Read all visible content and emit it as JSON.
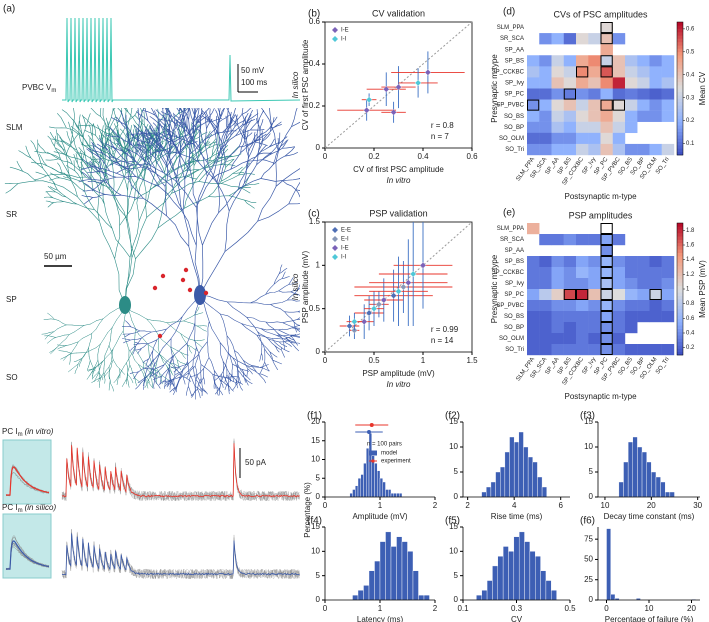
{
  "panel_a": {
    "label": "(a)",
    "vm_label": "PVBC V",
    "vm_sub": "m",
    "scale_mv": "50 mV",
    "scale_ms": "100 ms",
    "layers": [
      "SLM",
      "SR",
      "SP",
      "SO"
    ],
    "scale_um": "50 µm",
    "pc_label": "PC I",
    "pc_sub": "m",
    "vitro_note": "(in vitro)",
    "silico_note": "(in silico)",
    "scale_pa": "50 pA"
  },
  "chart_data": [
    {
      "type": "scatter",
      "panel_label": "(b)",
      "title": "CV validation",
      "xlabel": "CV of first PSC amplitude",
      "xlabel_note": "In vitro",
      "ylabel": "CV of first PSC amplitude",
      "ylabel_note": "In silico",
      "annotations": [
        "r = 0.8",
        "n = 7"
      ],
      "xlim": [
        0,
        0.6
      ],
      "ylim": [
        0,
        0.6
      ],
      "xticks": [
        0,
        0.2,
        0.4,
        0.6
      ],
      "yticks": [
        0,
        0.2,
        0.4,
        0.6
      ],
      "x_color": "#e8352b",
      "y_color": "#3a6fc4",
      "identity_line": true,
      "series": [
        {
          "name": "I-E",
          "color": "#7b62b8",
          "x": [
            0.17,
            0.25,
            0.28,
            0.3,
            0.42
          ],
          "values": [
            0.18,
            0.28,
            0.17,
            0.29,
            0.36
          ],
          "xerr": [
            0.12,
            0.08,
            0.05,
            0.07,
            0.15
          ],
          "yerr": [
            0.05,
            0.08,
            0.05,
            0.1,
            0.1
          ]
        },
        {
          "name": "I-I",
          "color": "#4fc8d8",
          "x": [
            0.18,
            0.38
          ],
          "values": [
            0.23,
            0.31
          ],
          "xerr": [
            0.03,
            0.08
          ],
          "yerr": [
            0.03,
            0.07
          ]
        }
      ]
    },
    {
      "type": "scatter",
      "panel_label": "(c)",
      "title": "PSP validation",
      "xlabel": "PSP amplitude (mV)",
      "xlabel_note": "In vitro",
      "ylabel": "PSP amplitude (mV)",
      "ylabel_note": "In silico",
      "annotations": [
        "r = 0.99",
        "n = 14"
      ],
      "xlim": [
        0,
        1.5
      ],
      "ylim": [
        0,
        1.5
      ],
      "xticks": [
        0,
        0.5,
        1,
        1.5
      ],
      "yticks": [
        0,
        0.5,
        1,
        1.5
      ],
      "x_color": "#e8352b",
      "y_color": "#3a6fc4",
      "identity_line": true,
      "series": [
        {
          "name": "E-E",
          "color": "#4f6fb5",
          "x": [
            0.25,
            0.45,
            0.7
          ],
          "values": [
            0.3,
            0.45,
            0.65
          ],
          "xerr": [
            0.1,
            0.15,
            0.4
          ],
          "yerr": [
            0.12,
            0.2,
            0.3
          ]
        },
        {
          "name": "E-I",
          "color": "#8898b8",
          "x": [
            0.3,
            0.55,
            0.8
          ],
          "values": [
            0.25,
            0.55,
            0.75
          ],
          "xerr": [
            0.05,
            0.1,
            0.5
          ],
          "yerr": [
            0.1,
            0.15,
            0.3
          ]
        },
        {
          "name": "I-E",
          "color": "#7b62b8",
          "x": [
            0.4,
            0.6,
            0.85,
            1.0
          ],
          "values": [
            0.35,
            0.6,
            0.8,
            1.0
          ],
          "xerr": [
            0.1,
            0.2,
            0.4,
            0.3
          ],
          "yerr": [
            0.2,
            0.25,
            0.5,
            0.5
          ]
        },
        {
          "name": "I-I",
          "color": "#4fc8d8",
          "x": [
            0.3,
            0.5,
            0.75,
            0.9
          ],
          "values": [
            0.35,
            0.5,
            0.7,
            0.9
          ],
          "xerr": [
            0.08,
            0.1,
            0.3,
            0.35
          ],
          "yerr": [
            0.1,
            0.2,
            0.4,
            0.6
          ]
        }
      ]
    },
    {
      "type": "heatmap",
      "panel_label": "(d)",
      "title": "CVs of PSC amplitudes",
      "xlabel": "Postsynaptic m-type",
      "ylabel": "Presynaptic m-type",
      "colorbar_label": "Mean CV",
      "colormap": "coolwarm",
      "clim": [
        0.05,
        0.63
      ],
      "cticks": [
        0.1,
        0.2,
        0.3,
        0.4,
        0.5,
        0.6
      ],
      "rows": [
        "SLM_PPA",
        "SR_SCA",
        "SP_AA",
        "SP_BS",
        "SP_CCKBC",
        "SP_Ivy",
        "SP_PC",
        "SP_PVBC",
        "SO_BS",
        "SO_BP",
        "SO_OLM",
        "SO_Tri"
      ],
      "columns": [
        "SLM_PPA",
        "SR_SCA",
        "SP_AA",
        "SP_BS",
        "SP_CCKBC",
        "SP_Ivy",
        "SP_PC",
        "SP_PVBC",
        "SO_BS",
        "SO_BP",
        "SO_OLM",
        "SO_Tri"
      ],
      "values": [
        [
          null,
          null,
          null,
          null,
          null,
          null,
          0.35,
          null,
          null,
          null,
          null,
          null
        ],
        [
          null,
          0.15,
          0.2,
          0.1,
          0.35,
          0.3,
          0.4,
          0.15,
          null,
          null,
          null,
          null
        ],
        [
          null,
          null,
          null,
          null,
          null,
          null,
          0.45,
          null,
          null,
          null,
          null,
          null
        ],
        [
          0.2,
          0.15,
          0.3,
          0.2,
          0.45,
          0.5,
          0.3,
          0.4,
          0.25,
          0.2,
          0.15,
          0.2
        ],
        [
          0.25,
          0.2,
          0.35,
          0.3,
          0.5,
          0.45,
          0.55,
          0.4,
          0.3,
          0.25,
          0.2,
          0.2
        ],
        [
          0.2,
          0.2,
          0.4,
          0.35,
          0.45,
          0.4,
          0.5,
          0.6,
          0.35,
          0.3,
          0.2,
          0.25
        ],
        [
          0.1,
          0.1,
          0.15,
          0.12,
          0.15,
          0.12,
          0.2,
          0.1,
          0.12,
          0.1,
          0.08,
          0.1
        ],
        [
          0.15,
          0.2,
          0.35,
          0.4,
          0.3,
          0.4,
          0.45,
          0.35,
          0.3,
          0.2,
          0.15,
          0.2
        ],
        [
          0.2,
          0.15,
          0.3,
          0.25,
          0.35,
          0.4,
          0.45,
          0.35,
          0.2,
          0.15,
          0.15,
          0.2
        ],
        [
          0.15,
          0.15,
          0.25,
          0.2,
          0.3,
          0.3,
          0.4,
          0.3,
          0.2,
          null,
          null,
          null
        ],
        [
          0.1,
          0.1,
          0.15,
          0.15,
          0.2,
          0.2,
          0.35,
          0.2,
          null,
          null,
          null,
          null
        ],
        [
          0.15,
          0.15,
          0.2,
          0.2,
          0.3,
          0.25,
          0.4,
          0.25,
          0.15,
          0.15,
          0.2,
          0.3
        ]
      ],
      "highlight": [
        [
          0,
          6
        ],
        [
          1,
          6
        ],
        [
          3,
          6
        ],
        [
          4,
          4
        ],
        [
          4,
          6
        ],
        [
          6,
          3
        ],
        [
          7,
          0
        ],
        [
          7,
          6
        ],
        [
          7,
          7
        ]
      ]
    },
    {
      "type": "heatmap",
      "panel_label": "(e)",
      "title": "PSP amplitudes",
      "xlabel": "Postsynaptic m-type",
      "ylabel": "Presynaptic m-type",
      "colorbar_label": "Mean PSP (mV)",
      "colormap": "coolwarm",
      "clim": [
        0.1,
        1.9
      ],
      "cticks": [
        0.2,
        0.4,
        0.6,
        0.8,
        1,
        1.2,
        1.4,
        1.6,
        1.8
      ],
      "rows": [
        "SLM_PPA",
        "SR_SCA",
        "SP_AA",
        "SP_BS",
        "SP_CCKBC",
        "SP_Ivy",
        "SP_PC",
        "SP_PVBC",
        "SO_BS",
        "SO_BP",
        "SO_OLM",
        "SO_Tri"
      ],
      "columns": [
        "SLM_PPA",
        "SR_SCA",
        "SP_AA",
        "SP_BS",
        "SP_CCKBC",
        "SP_Ivy",
        "SP_PC",
        "SP_PVBC",
        "SO_BS",
        "SO_BP",
        "SO_OLM",
        "SO_Tri"
      ],
      "values": [
        [
          1.3,
          null,
          null,
          null,
          null,
          null,
          null,
          null,
          null,
          null,
          null,
          null
        ],
        [
          null,
          0.3,
          0.3,
          0.4,
          0.3,
          0.3,
          0.5,
          0.3,
          null,
          null,
          null,
          null
        ],
        [
          null,
          null,
          null,
          null,
          null,
          null,
          0.4,
          null,
          null,
          null,
          null,
          null
        ],
        [
          0.3,
          0.2,
          0.4,
          0.3,
          0.5,
          0.4,
          0.6,
          0.4,
          0.3,
          0.3,
          0.2,
          0.3
        ],
        [
          0.3,
          0.3,
          0.5,
          0.4,
          0.6,
          0.5,
          0.6,
          0.5,
          0.3,
          0.3,
          0.3,
          0.3
        ],
        [
          0.3,
          0.3,
          0.5,
          0.4,
          0.4,
          0.5,
          0.7,
          0.5,
          0.4,
          0.3,
          0.3,
          0.4
        ],
        [
          0.5,
          0.8,
          1.1,
          1.7,
          1.8,
          1.2,
          0.9,
          1.0,
          0.6,
          0.5,
          0.9,
          0.5
        ],
        [
          0.3,
          0.3,
          0.4,
          0.4,
          0.5,
          0.4,
          0.6,
          0.4,
          0.3,
          0.3,
          0.2,
          0.3
        ],
        [
          0.2,
          0.2,
          0.3,
          0.3,
          0.3,
          0.3,
          0.5,
          0.3,
          0.2,
          0.2,
          0.2,
          0.2
        ],
        [
          0.2,
          0.2,
          0.3,
          0.2,
          0.3,
          0.3,
          0.4,
          0.3,
          0.2,
          null,
          null,
          null
        ],
        [
          0.2,
          0.2,
          0.2,
          0.2,
          0.3,
          0.2,
          0.4,
          0.2,
          null,
          null,
          null,
          null
        ],
        [
          0.2,
          0.2,
          0.3,
          0.3,
          0.3,
          0.3,
          0.4,
          0.3,
          0.2,
          0.2,
          0.2,
          0.2
        ]
      ],
      "highlight": [
        [
          0,
          6
        ],
        [
          1,
          6
        ],
        [
          2,
          6
        ],
        [
          3,
          6
        ],
        [
          4,
          6
        ],
        [
          5,
          6
        ],
        [
          6,
          6
        ],
        [
          7,
          6
        ],
        [
          8,
          6
        ],
        [
          9,
          6
        ],
        [
          10,
          6
        ],
        [
          11,
          6
        ],
        [
          6,
          3
        ],
        [
          6,
          4
        ],
        [
          6,
          10
        ]
      ]
    },
    {
      "type": "histogram",
      "panel_label": "(f1)",
      "xlabel": "Amplitude (mV)",
      "ylabel": "Percentage (%)",
      "color": "#3d5fb4",
      "xlim": [
        0,
        2
      ],
      "xticks": [
        0,
        1,
        2
      ],
      "ylim": [
        0,
        20
      ],
      "yticks": [
        0,
        5,
        10,
        15,
        20
      ],
      "bins": [
        0.45,
        0.5,
        0.55,
        0.6,
        0.65,
        0.7,
        0.75,
        0.8,
        0.85,
        0.9,
        0.95,
        1.0,
        1.05,
        1.1,
        1.15,
        1.2,
        1.25,
        1.3,
        1.35,
        1.4,
        1.45
      ],
      "values": [
        1,
        2,
        3,
        5,
        6,
        9,
        13,
        17,
        11,
        9,
        7,
        5,
        4,
        2,
        2,
        1,
        1,
        1,
        1,
        0
      ],
      "legend_title": "n = 100 pairs",
      "summary": [
        {
          "name": "model",
          "color": "#3d5fb4",
          "mean": 0.8,
          "sd": 0.25
        },
        {
          "name": "experiment",
          "color": "#e8352b",
          "mean": 0.85,
          "sd": 0.3
        }
      ]
    },
    {
      "type": "histogram",
      "panel_label": "(f2)",
      "xlabel": "Rise time (ms)",
      "color": "#3d5fb4",
      "xlim": [
        1.8,
        6.4
      ],
      "xticks": [
        2,
        4,
        6
      ],
      "ylim": [
        0,
        15
      ],
      "yticks": [
        0,
        5,
        10,
        15
      ],
      "bins": [
        2.6,
        2.8,
        3.0,
        3.2,
        3.4,
        3.6,
        3.8,
        4.0,
        4.2,
        4.4,
        4.6,
        4.8,
        5.0,
        5.2,
        5.4
      ],
      "values": [
        1,
        2,
        3,
        5,
        6,
        9,
        12,
        11,
        13,
        10,
        8,
        7,
        4,
        2
      ]
    },
    {
      "type": "histogram",
      "panel_label": "(f3)",
      "xlabel": "Decay time constant (ms)",
      "color": "#3d5fb4",
      "xlim": [
        8.5,
        30.5
      ],
      "xticks": [
        10,
        20,
        30
      ],
      "ylim": [
        0,
        15
      ],
      "yticks": [
        0,
        5,
        10,
        15
      ],
      "bins": [
        13,
        14,
        15,
        16,
        17,
        18,
        19,
        20,
        21,
        22,
        23,
        24,
        25
      ],
      "values": [
        3,
        7,
        11,
        12,
        10,
        9,
        7,
        5,
        4,
        3,
        1,
        1
      ]
    },
    {
      "type": "histogram",
      "panel_label": "(f4)",
      "xlabel": "Latency (ms)",
      "color": "#3d5fb4",
      "xlim": [
        0,
        2
      ],
      "xticks": [
        0,
        1,
        2
      ],
      "ylim": [
        0,
        15
      ],
      "yticks": [
        0,
        5,
        10,
        15
      ],
      "bins": [
        0.5,
        0.6,
        0.7,
        0.8,
        0.9,
        1.0,
        1.1,
        1.2,
        1.3,
        1.4,
        1.5,
        1.6,
        1.7,
        1.8,
        1.9
      ],
      "values": [
        1,
        2,
        3,
        6,
        8,
        12,
        14,
        11,
        13,
        12,
        10,
        6,
        1,
        1
      ]
    },
    {
      "type": "histogram",
      "panel_label": "(f5)",
      "xlabel": "CV",
      "color": "#3d5fb4",
      "xlim": [
        0.1,
        0.5
      ],
      "xticks": [
        0.1,
        0.3,
        0.5
      ],
      "ylim": [
        0,
        15
      ],
      "yticks": [
        0,
        5,
        10,
        15
      ],
      "bins": [
        0.15,
        0.17,
        0.19,
        0.21,
        0.23,
        0.25,
        0.27,
        0.29,
        0.31,
        0.33,
        0.35,
        0.37,
        0.39,
        0.41,
        0.43,
        0.45
      ],
      "values": [
        1,
        2,
        4,
        7,
        9,
        11,
        10,
        13,
        14,
        12,
        10,
        9,
        6,
        4,
        2
      ]
    },
    {
      "type": "histogram",
      "panel_label": "(f6)",
      "xlabel": "Percentage of failure (%)",
      "color": "#3d5fb4",
      "xlim": [
        -2,
        22
      ],
      "xticks": [
        0,
        10,
        20
      ],
      "ylim": [
        0,
        90
      ],
      "yticks": [
        0,
        25,
        50,
        75
      ],
      "bins": [
        0,
        1,
        2,
        3,
        4,
        5,
        6,
        7,
        8,
        9,
        10,
        11,
        12,
        13,
        14,
        15,
        16,
        17,
        18,
        19,
        20,
        21
      ],
      "values": [
        88,
        7,
        2,
        0,
        0,
        0,
        0,
        2,
        0,
        0,
        0,
        0,
        0,
        0,
        0,
        0,
        0,
        0,
        0,
        0,
        1
      ]
    }
  ]
}
